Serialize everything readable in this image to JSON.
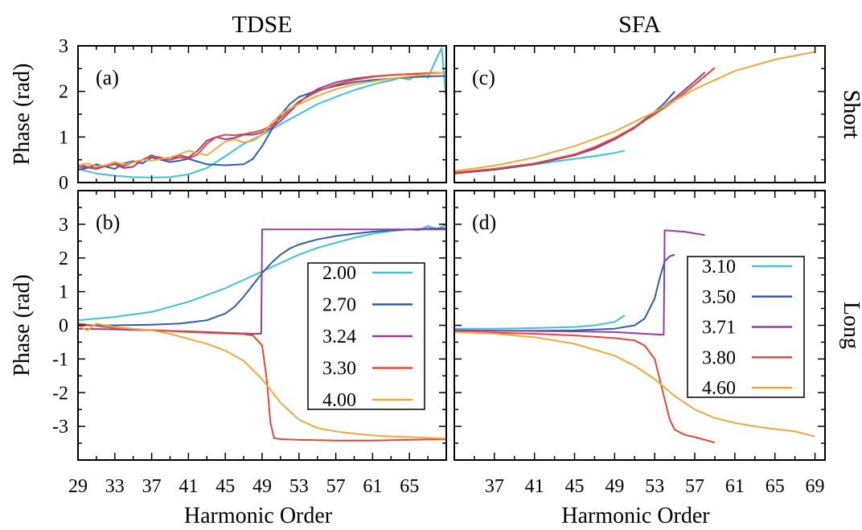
{
  "chart_data": [
    {
      "id": "a",
      "type": "line",
      "panel_label": "(a)",
      "column_title": "TDSE",
      "row_title": "Short",
      "ylabel": "Phase (rad)",
      "xlabel": "",
      "xlim": [
        29,
        69
      ],
      "ylim": [
        0,
        3
      ],
      "xticks": [],
      "yticks": [
        0,
        1,
        2,
        3
      ],
      "legend": null,
      "series": [
        {
          "name": "2.00",
          "color": "#3ec3d4",
          "x": [
            29,
            31,
            33,
            35,
            37,
            39,
            41,
            43,
            45,
            47,
            49,
            51,
            53,
            55,
            57,
            59,
            61,
            62,
            63,
            64,
            65,
            66,
            67,
            68,
            68.5,
            69
          ],
          "y": [
            0.3,
            0.2,
            0.15,
            0.12,
            0.11,
            0.12,
            0.18,
            0.32,
            0.58,
            0.85,
            1.05,
            1.28,
            1.5,
            1.72,
            1.88,
            2.03,
            2.15,
            2.2,
            2.24,
            2.3,
            2.26,
            2.4,
            2.3,
            2.75,
            2.95,
            1.8
          ]
        },
        {
          "name": "2.70",
          "color": "#2f5faa",
          "x": [
            29,
            30,
            31,
            32,
            33,
            34,
            35,
            36,
            37,
            38,
            39,
            40,
            41,
            43,
            45,
            47,
            48,
            49,
            50,
            51,
            52,
            53,
            55,
            57,
            59,
            61,
            63,
            65,
            67,
            69
          ],
          "y": [
            0.28,
            0.32,
            0.4,
            0.35,
            0.3,
            0.42,
            0.47,
            0.42,
            0.55,
            0.5,
            0.45,
            0.48,
            0.52,
            0.4,
            0.38,
            0.4,
            0.52,
            0.8,
            1.15,
            1.48,
            1.72,
            1.88,
            2.02,
            2.12,
            2.2,
            2.25,
            2.28,
            2.31,
            2.33,
            2.34
          ]
        },
        {
          "name": "3.24",
          "color": "#9a3ba0",
          "x": [
            29,
            30,
            31,
            32,
            33,
            34,
            35,
            36,
            37,
            38,
            39,
            40,
            41,
            42,
            43,
            44,
            45,
            46,
            47,
            48,
            49,
            50,
            51,
            52,
            53,
            54,
            55,
            57,
            59,
            61,
            63,
            65,
            67,
            69
          ],
          "y": [
            0.35,
            0.33,
            0.3,
            0.36,
            0.4,
            0.32,
            0.35,
            0.5,
            0.6,
            0.52,
            0.5,
            0.6,
            0.55,
            0.7,
            0.92,
            1.0,
            0.95,
            0.98,
            1.05,
            1.05,
            1.1,
            1.2,
            1.35,
            1.55,
            1.75,
            1.92,
            2.05,
            2.2,
            2.28,
            2.33,
            2.36,
            2.38,
            2.4,
            2.41
          ]
        },
        {
          "name": "3.30",
          "color": "#e34a33",
          "x": [
            29,
            30,
            31,
            32,
            33,
            34,
            35,
            36,
            37,
            38,
            39,
            40,
            41,
            42,
            43,
            44,
            45,
            46,
            47,
            48,
            49,
            50,
            51,
            52,
            53,
            55,
            57,
            59,
            61,
            63,
            65,
            67,
            69
          ],
          "y": [
            0.4,
            0.35,
            0.32,
            0.38,
            0.42,
            0.36,
            0.45,
            0.5,
            0.58,
            0.55,
            0.5,
            0.55,
            0.52,
            0.62,
            0.85,
            1.0,
            1.05,
            1.04,
            1.06,
            1.1,
            1.15,
            1.25,
            1.42,
            1.6,
            1.78,
            2.0,
            2.15,
            2.25,
            2.32,
            2.36,
            2.38,
            2.4,
            2.41
          ]
        },
        {
          "name": "4.00",
          "color": "#f2a93b",
          "x": [
            29,
            30,
            31,
            32,
            33,
            34,
            35,
            36,
            37,
            38,
            39,
            40,
            41,
            42,
            43,
            44,
            45,
            46,
            47,
            48,
            49,
            50,
            51,
            52,
            53,
            55,
            57,
            59,
            61,
            63,
            65,
            67,
            69
          ],
          "y": [
            0.38,
            0.42,
            0.36,
            0.38,
            0.45,
            0.4,
            0.44,
            0.5,
            0.48,
            0.52,
            0.55,
            0.62,
            0.7,
            0.65,
            0.6,
            0.75,
            0.9,
            0.95,
            0.88,
            0.92,
            1.05,
            1.3,
            1.5,
            1.62,
            1.72,
            1.9,
            2.05,
            2.15,
            2.22,
            2.28,
            2.33,
            2.38,
            2.42
          ]
        }
      ]
    },
    {
      "id": "b",
      "type": "line",
      "panel_label": "(b)",
      "column_title": "",
      "row_title": "Long",
      "ylabel": "Phase (rad)",
      "xlabel": "Harmonic Order",
      "xlim": [
        29,
        69
      ],
      "ylim": [
        -4,
        4
      ],
      "xticks": [
        29,
        33,
        37,
        41,
        45,
        49,
        53,
        57,
        61,
        65
      ],
      "yticks": [
        -3,
        -2,
        -1,
        0,
        1,
        2,
        3
      ],
      "legend": {
        "position": "right-center",
        "labels": [
          "2.00",
          "2.70",
          "3.24",
          "3.30",
          "4.00"
        ]
      },
      "series": [
        {
          "name": "2.00",
          "color": "#3ec3d4",
          "x": [
            29,
            33,
            37,
            41,
            45,
            47,
            49,
            51,
            53,
            55,
            57,
            59,
            61,
            63,
            65,
            66,
            67,
            68,
            69
          ],
          "y": [
            0.15,
            0.25,
            0.4,
            0.7,
            1.1,
            1.35,
            1.6,
            1.85,
            2.1,
            2.3,
            2.45,
            2.6,
            2.72,
            2.8,
            2.85,
            2.82,
            2.95,
            2.85,
            3.0
          ]
        },
        {
          "name": "2.70",
          "color": "#2f5faa",
          "x": [
            29,
            33,
            37,
            40,
            43,
            45,
            46,
            47,
            48,
            49,
            50,
            51,
            52,
            53,
            55,
            57,
            59,
            61,
            63,
            65,
            67,
            69
          ],
          "y": [
            0.0,
            0.0,
            0.02,
            0.05,
            0.15,
            0.35,
            0.55,
            0.85,
            1.2,
            1.55,
            1.85,
            2.1,
            2.28,
            2.4,
            2.55,
            2.65,
            2.72,
            2.78,
            2.82,
            2.85,
            2.87,
            2.88
          ]
        },
        {
          "name": "3.24",
          "color": "#9a3ba0",
          "x": [
            29,
            33,
            37,
            41,
            45,
            48,
            48.9,
            49.0,
            53,
            57,
            61,
            65,
            69
          ],
          "y": [
            -0.1,
            -0.12,
            -0.15,
            -0.18,
            -0.22,
            -0.25,
            -0.25,
            2.85,
            2.85,
            2.85,
            2.85,
            2.85,
            2.85
          ]
        },
        {
          "name": "3.30",
          "color": "#e34a33",
          "x": [
            29,
            33,
            37,
            41,
            45,
            47,
            48,
            49,
            49.5,
            49.9,
            50.3,
            51,
            53,
            57,
            61,
            65,
            69
          ],
          "y": [
            0.05,
            -0.08,
            -0.14,
            -0.2,
            -0.24,
            -0.26,
            -0.3,
            -0.6,
            -1.6,
            -2.9,
            -3.35,
            -3.38,
            -3.4,
            -3.42,
            -3.42,
            -3.4,
            -3.38
          ]
        },
        {
          "name": "4.00",
          "color": "#f2a93b",
          "x": [
            29,
            30,
            31,
            33,
            35,
            37,
            39,
            41,
            43,
            45,
            47,
            49,
            51,
            53,
            55,
            57,
            59,
            61,
            63,
            65,
            67,
            69
          ],
          "y": [
            0.0,
            -0.15,
            0.05,
            -0.05,
            -0.1,
            -0.15,
            -0.25,
            -0.4,
            -0.55,
            -0.75,
            -1.05,
            -1.6,
            -2.3,
            -2.8,
            -3.05,
            -3.15,
            -3.22,
            -3.27,
            -3.3,
            -3.32,
            -3.34,
            -3.36
          ]
        }
      ]
    },
    {
      "id": "c",
      "type": "line",
      "panel_label": "(c)",
      "column_title": "SFA",
      "row_title": "Short",
      "ylabel": "",
      "xlabel": "",
      "xlim": [
        33,
        70
      ],
      "ylim": [
        0,
        3
      ],
      "xticks": [],
      "yticks": [],
      "legend": null,
      "series": [
        {
          "name": "3.10",
          "color": "#3ec3d4",
          "x": [
            33,
            35,
            37,
            39,
            41,
            43,
            45,
            47,
            49,
            50
          ],
          "y": [
            0.2,
            0.25,
            0.3,
            0.35,
            0.4,
            0.46,
            0.52,
            0.58,
            0.65,
            0.7
          ]
        },
        {
          "name": "3.50",
          "color": "#2f5faa",
          "x": [
            33,
            37,
            41,
            45,
            47,
            49,
            51,
            53,
            54,
            55
          ],
          "y": [
            0.2,
            0.28,
            0.4,
            0.6,
            0.74,
            0.95,
            1.22,
            1.55,
            1.75,
            2.0
          ]
        },
        {
          "name": "3.71",
          "color": "#9a3ba0",
          "x": [
            33,
            37,
            41,
            45,
            47,
            49,
            51,
            53,
            55,
            57,
            58
          ],
          "y": [
            0.2,
            0.3,
            0.42,
            0.6,
            0.75,
            0.95,
            1.2,
            1.52,
            1.85,
            2.22,
            2.42
          ]
        },
        {
          "name": "3.80",
          "color": "#e34a33",
          "x": [
            33,
            37,
            41,
            45,
            47,
            49,
            51,
            53,
            55,
            57,
            59
          ],
          "y": [
            0.22,
            0.3,
            0.42,
            0.62,
            0.78,
            0.98,
            1.22,
            1.5,
            1.8,
            2.15,
            2.52
          ]
        },
        {
          "name": "4.60",
          "color": "#f2a93b",
          "x": [
            33,
            37,
            41,
            45,
            49,
            53,
            57,
            61,
            65,
            69
          ],
          "y": [
            0.25,
            0.37,
            0.55,
            0.8,
            1.12,
            1.55,
            2.05,
            2.45,
            2.7,
            2.87
          ]
        }
      ]
    },
    {
      "id": "d",
      "type": "line",
      "panel_label": "(d)",
      "column_title": "",
      "row_title": "",
      "ylabel": "",
      "xlabel": "Harmonic Order",
      "xlim": [
        33,
        70
      ],
      "ylim": [
        -4,
        4
      ],
      "xticks": [
        37,
        41,
        45,
        49,
        53,
        57,
        61,
        65,
        69
      ],
      "yticks": [],
      "legend": {
        "position": "right-center",
        "labels": [
          "3.10",
          "3.50",
          "3.71",
          "3.80",
          "4.60"
        ]
      },
      "series": [
        {
          "name": "3.10",
          "color": "#3ec3d4",
          "x": [
            33,
            37,
            41,
            45,
            47,
            49,
            50
          ],
          "y": [
            -0.1,
            -0.1,
            -0.08,
            -0.05,
            0.0,
            0.1,
            0.3
          ]
        },
        {
          "name": "3.50",
          "color": "#2f5faa",
          "x": [
            33,
            37,
            41,
            45,
            49,
            51,
            52,
            53,
            53.5,
            54,
            54.5,
            55
          ],
          "y": [
            -0.15,
            -0.16,
            -0.16,
            -0.15,
            -0.1,
            0.0,
            0.2,
            0.8,
            1.4,
            1.9,
            2.05,
            2.1
          ]
        },
        {
          "name": "3.71",
          "color": "#9a3ba0",
          "x": [
            33,
            37,
            41,
            45,
            49,
            52,
            53.9,
            54.0,
            56,
            58
          ],
          "y": [
            -0.15,
            -0.16,
            -0.17,
            -0.18,
            -0.2,
            -0.25,
            -0.28,
            2.82,
            2.78,
            2.68
          ]
        },
        {
          "name": "3.80",
          "color": "#e34a33",
          "x": [
            33,
            37,
            41,
            45,
            49,
            51,
            52,
            53,
            53.5,
            54,
            54.5,
            55,
            56,
            57,
            59
          ],
          "y": [
            -0.2,
            -0.22,
            -0.25,
            -0.3,
            -0.38,
            -0.45,
            -0.6,
            -1.0,
            -1.6,
            -2.2,
            -2.8,
            -3.1,
            -3.25,
            -3.32,
            -3.48
          ]
        },
        {
          "name": "4.60",
          "color": "#f2a93b",
          "x": [
            33,
            37,
            41,
            45,
            49,
            51,
            53,
            55,
            57,
            59,
            61,
            63,
            65,
            67,
            69
          ],
          "y": [
            -0.2,
            -0.25,
            -0.35,
            -0.55,
            -0.9,
            -1.2,
            -1.6,
            -2.1,
            -2.5,
            -2.75,
            -2.9,
            -3.0,
            -3.08,
            -3.15,
            -3.3
          ]
        }
      ]
    }
  ]
}
